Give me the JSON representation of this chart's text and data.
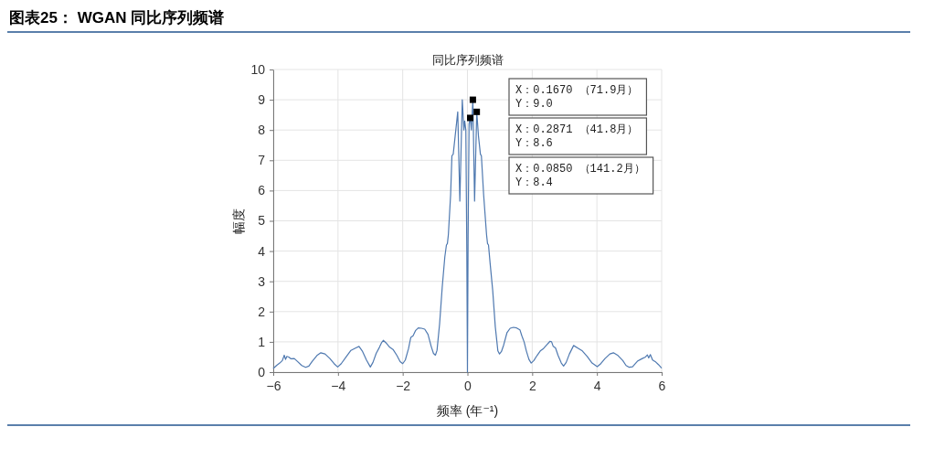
{
  "chart_data": {
    "type": "line",
    "title": "图表25： WGAN 同比序列频谱",
    "subtitle": "同比序列频谱",
    "xlabel": "频率 (年⁻¹)",
    "ylabel": "幅度",
    "xlim": [
      -6,
      6
    ],
    "ylim": [
      0,
      10
    ],
    "xticks": [
      {
        "value": -6,
        "label": "−6"
      },
      {
        "value": -4,
        "label": "−4"
      },
      {
        "value": -2,
        "label": "−2"
      },
      0,
      2,
      4,
      6
    ],
    "yticks": [
      0,
      1,
      2,
      3,
      4,
      5,
      6,
      7,
      8,
      9,
      10
    ],
    "grid": true,
    "series": [
      {
        "color": "#4f79b0",
        "x": [
          -6.0,
          -5.9,
          -5.8,
          -5.72,
          -5.66,
          -5.62,
          -5.58,
          -5.52,
          -5.45,
          -5.35,
          -5.25,
          -5.12,
          -5.0,
          -4.9,
          -4.8,
          -4.65,
          -4.53,
          -4.4,
          -4.25,
          -4.12,
          -4.01,
          -3.9,
          -3.75,
          -3.6,
          -3.45,
          -3.35,
          -3.25,
          -3.12,
          -3.0,
          -2.92,
          -2.82,
          -2.72,
          -2.65,
          -2.6,
          -2.5,
          -2.4,
          -2.3,
          -2.18,
          -2.08,
          -2.0,
          -1.92,
          -1.82,
          -1.75,
          -1.68,
          -1.6,
          -1.52,
          -1.42,
          -1.32,
          -1.22,
          -1.12,
          -1.05,
          -0.99,
          -0.94,
          -0.86,
          -0.78,
          -0.7,
          -0.65,
          -0.62,
          -0.59,
          -0.52,
          -0.48,
          -0.44,
          -0.38,
          -0.3,
          -0.235,
          -0.16,
          -0.11,
          -0.085,
          -0.05,
          -0.02,
          0,
          0.02,
          0.05,
          0.085,
          0.12,
          0.167,
          0.22,
          0.2871,
          0.34,
          0.4,
          0.43,
          0.5,
          0.59,
          0.62,
          0.65,
          0.7,
          0.78,
          0.86,
          0.94,
          0.99,
          1.05,
          1.12,
          1.22,
          1.32,
          1.42,
          1.52,
          1.62,
          1.68,
          1.75,
          1.82,
          1.9,
          1.97,
          2.05,
          2.15,
          2.25,
          2.35,
          2.45,
          2.55,
          2.6,
          2.65,
          2.72,
          2.8,
          2.9,
          2.97,
          3.05,
          3.15,
          3.28,
          3.4,
          3.55,
          3.7,
          3.85,
          4.01,
          4.12,
          4.25,
          4.4,
          4.51,
          4.65,
          4.8,
          4.9,
          5.0,
          5.1,
          5.25,
          5.4,
          5.5,
          5.56,
          5.6,
          5.65,
          5.72,
          5.8,
          5.9,
          6.0
        ],
        "values": [
          0.12,
          0.22,
          0.3,
          0.38,
          0.56,
          0.42,
          0.52,
          0.5,
          0.44,
          0.45,
          0.35,
          0.22,
          0.16,
          0.2,
          0.35,
          0.55,
          0.64,
          0.6,
          0.45,
          0.28,
          0.17,
          0.28,
          0.5,
          0.72,
          0.8,
          0.85,
          0.7,
          0.4,
          0.17,
          0.32,
          0.62,
          0.82,
          0.98,
          1.05,
          0.95,
          0.82,
          0.75,
          0.55,
          0.35,
          0.28,
          0.4,
          0.78,
          1.15,
          1.2,
          1.38,
          1.46,
          1.45,
          1.42,
          1.25,
          0.85,
          0.62,
          0.56,
          0.72,
          1.6,
          2.8,
          3.8,
          4.2,
          4.25,
          4.54,
          5.86,
          7.15,
          7.2,
          7.8,
          8.6,
          5.65,
          9.0,
          8.0,
          8.3,
          8.0,
          4.0,
          0,
          4.5,
          8.2,
          8.4,
          8.0,
          9.0,
          5.65,
          8.6,
          7.8,
          7.2,
          7.15,
          5.86,
          4.54,
          4.25,
          4.2,
          3.6,
          2.7,
          1.5,
          0.7,
          0.6,
          0.68,
          0.9,
          1.3,
          1.45,
          1.48,
          1.46,
          1.4,
          1.2,
          1.0,
          0.7,
          0.42,
          0.3,
          0.38,
          0.55,
          0.7,
          0.78,
          0.9,
          1.02,
          1.0,
          0.85,
          0.8,
          0.55,
          0.3,
          0.2,
          0.32,
          0.6,
          0.88,
          0.8,
          0.7,
          0.52,
          0.3,
          0.18,
          0.28,
          0.45,
          0.6,
          0.64,
          0.55,
          0.38,
          0.22,
          0.16,
          0.18,
          0.36,
          0.45,
          0.5,
          0.57,
          0.47,
          0.58,
          0.4,
          0.35,
          0.25,
          0.13
        ]
      },
      {
        "type": "scatter",
        "color": "#000000",
        "marker": "square",
        "x": [
          0.167,
          0.2871,
          0.085
        ],
        "values": [
          9.0,
          8.6,
          8.4
        ]
      }
    ],
    "annotations": [
      "X：0.1670 （71.9月）\nY：9.0",
      "X：0.2871 （41.8月）\nY：8.6",
      "X：0.0850 （141.2月）\nY：8.4"
    ]
  }
}
